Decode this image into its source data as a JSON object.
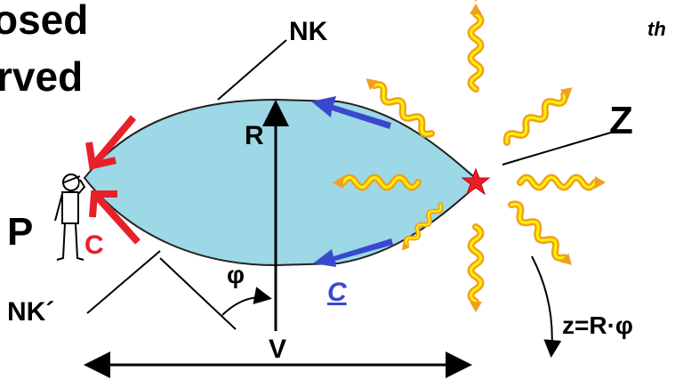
{
  "title_lines": [
    "osed",
    "rved"
  ],
  "corner_text": "th",
  "labels": {
    "nk": "NK",
    "nk_prime": "NK´",
    "r": "R",
    "z": "Z",
    "p": "P",
    "c_red": "C",
    "c_blue": "C",
    "phi": "φ",
    "v": "V",
    "formula": "z=R·φ"
  }
}
